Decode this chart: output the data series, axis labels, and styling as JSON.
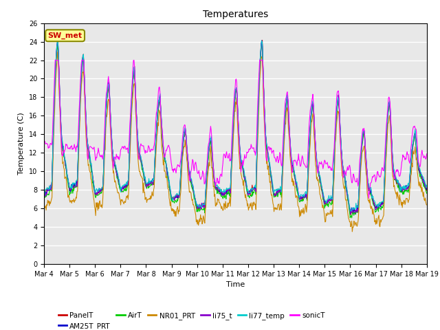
{
  "title": "Temperatures",
  "xlabel": "Time",
  "ylabel": "Temperature (C)",
  "ylim": [
    0,
    26
  ],
  "yticks": [
    0,
    2,
    4,
    6,
    8,
    10,
    12,
    14,
    16,
    18,
    20,
    22,
    24,
    26
  ],
  "x_tick_labels": [
    "Mar 4",
    "Mar 5",
    "Mar 6",
    "Mar 7",
    "Mar 8",
    "Mar 9",
    "Mar 10",
    "Mar 11",
    "Mar 12",
    "Mar 13",
    "Mar 14",
    "Mar 15",
    "Mar 16",
    "Mar 17",
    "Mar 18",
    "Mar 19"
  ],
  "series_names": [
    "PanelT",
    "AM25T_PRT",
    "AirT",
    "NR01_PRT",
    "li75_t",
    "li77_temp",
    "sonicT"
  ],
  "series_colors": [
    "#cc0000",
    "#0000cc",
    "#00cc00",
    "#cc8800",
    "#8800cc",
    "#00cccc",
    "#ff00ff"
  ],
  "legend_box_color": "#ffff99",
  "legend_box_edge_color": "#888800",
  "legend_box_text_color": "#cc0000",
  "legend_box_text": "SW_met",
  "plot_bg_color": "#e8e8e8",
  "fig_bg_color": "#ffffff",
  "grid_color": "#ffffff",
  "title_fontsize": 10,
  "label_fontsize": 8,
  "tick_fontsize": 7,
  "line_width": 0.8,
  "n_days": 15,
  "pts_per_day": 48,
  "day_peaks": [
    24.0,
    22.5,
    19.5,
    21.0,
    18.0,
    14.5,
    13.5,
    19.0,
    24.0,
    18.0,
    17.5,
    18.0,
    14.5,
    17.5,
    14.0
  ],
  "night_mins": [
    7.5,
    8.0,
    7.5,
    8.0,
    8.5,
    7.0,
    6.0,
    7.5,
    7.5,
    7.5,
    7.0,
    6.5,
    5.5,
    6.0,
    8.0
  ],
  "sonic_extra": [
    3.5,
    3.0,
    2.5,
    3.0,
    2.5,
    2.0,
    2.0,
    2.5,
    3.5,
    2.5,
    2.5,
    2.5,
    2.0,
    2.5,
    2.0
  ]
}
